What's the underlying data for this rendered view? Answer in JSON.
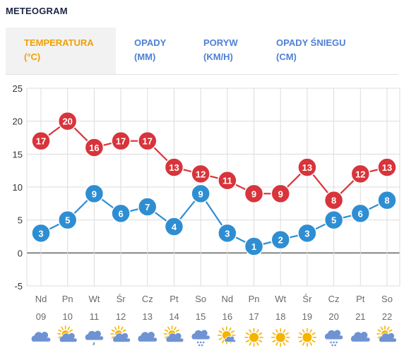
{
  "header": {
    "title": "METEOGRAM"
  },
  "tabs": [
    {
      "line1": "TEMPERATURA",
      "line2": "(°C)"
    },
    {
      "line1": "OPADY",
      "line2": "(MM)"
    },
    {
      "line1": "PORYW",
      "line2": "(KM/H)"
    },
    {
      "line1": "OPADY ŚNIEGU",
      "line2": "(CM)"
    }
  ],
  "colors": {
    "max": "#d8343b",
    "min": "#2f8ed2",
    "active_tab": "#f0a000",
    "tab": "#4f80d6",
    "grid": "#dcdcdc",
    "axis_text": "#6a6a6a",
    "sun": "#f4b400",
    "cloud": "#6f93d2"
  },
  "chart_data": {
    "type": "line",
    "title": "",
    "xlabel": "",
    "ylabel": "",
    "ylim": [
      -5,
      25
    ],
    "yticks": [
      -5,
      0,
      5,
      10,
      15,
      20,
      25
    ],
    "grid": true,
    "categories": [
      {
        "day": "Nd",
        "date": "09",
        "icon": "cloud-icon"
      },
      {
        "day": "Pn",
        "date": "10",
        "icon": "sun-cloud-icon"
      },
      {
        "day": "Wt",
        "date": "11",
        "icon": "cloud-drizzle-icon"
      },
      {
        "day": "Śr",
        "date": "12",
        "icon": "sun-cloud-icon"
      },
      {
        "day": "Cz",
        "date": "13",
        "icon": "cloud-icon"
      },
      {
        "day": "Pt",
        "date": "14",
        "icon": "sun-cloud-icon"
      },
      {
        "day": "So",
        "date": "15",
        "icon": "cloud-rain-icon"
      },
      {
        "day": "Nd",
        "date": "16",
        "icon": "sun-small-cloud-icon"
      },
      {
        "day": "Pn",
        "date": "17",
        "icon": "sun-icon"
      },
      {
        "day": "Wt",
        "date": "18",
        "icon": "sun-icon"
      },
      {
        "day": "Śr",
        "date": "19",
        "icon": "sun-icon"
      },
      {
        "day": "Cz",
        "date": "20",
        "icon": "cloud-rain-icon"
      },
      {
        "day": "Pt",
        "date": "21",
        "icon": "cloud-icon"
      },
      {
        "day": "So",
        "date": "22",
        "icon": "sun-cloud-icon"
      }
    ],
    "series": [
      {
        "key": "max",
        "values": [
          17,
          20,
          16,
          17,
          17,
          13,
          12,
          11,
          9,
          9,
          13,
          8,
          12,
          13
        ]
      },
      {
        "key": "min",
        "values": [
          3,
          5,
          9,
          6,
          7,
          4,
          9,
          3,
          1,
          2,
          3,
          5,
          6,
          8
        ]
      }
    ]
  }
}
